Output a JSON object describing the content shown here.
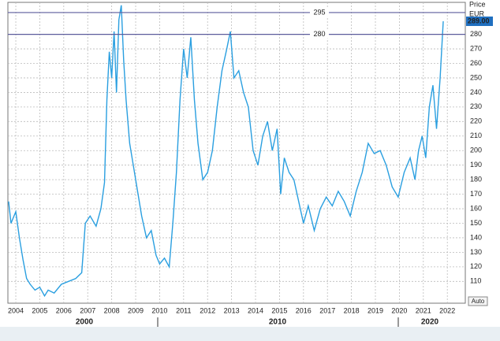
{
  "chart_data": {
    "type": "line",
    "y_axis_title": "Price",
    "unit": "EUR",
    "x": [
      2003.7,
      2003.8,
      2004.0,
      2004.15,
      2004.3,
      2004.45,
      2004.6,
      2004.8,
      2005.0,
      2005.2,
      2005.35,
      2005.6,
      2005.9,
      2006.2,
      2006.5,
      2006.75,
      2006.9,
      2007.1,
      2007.35,
      2007.55,
      2007.7,
      2007.8,
      2007.9,
      2008.0,
      2008.1,
      2008.2,
      2008.3,
      2008.4,
      2008.5,
      2008.6,
      2008.75,
      2008.9,
      2009.05,
      2009.25,
      2009.45,
      2009.65,
      2009.85,
      2010.0,
      2010.2,
      2010.4,
      2010.55,
      2010.7,
      2010.85,
      2011.0,
      2011.15,
      2011.3,
      2011.45,
      2011.6,
      2011.8,
      2012.0,
      2012.2,
      2012.4,
      2012.6,
      2012.8,
      2012.95,
      2013.1,
      2013.3,
      2013.5,
      2013.7,
      2013.9,
      2014.1,
      2014.3,
      2014.5,
      2014.7,
      2014.9,
      2015.05,
      2015.2,
      2015.4,
      2015.6,
      2015.8,
      2016.0,
      2016.2,
      2016.45,
      2016.7,
      2016.95,
      2017.2,
      2017.45,
      2017.7,
      2017.95,
      2018.2,
      2018.45,
      2018.7,
      2018.95,
      2019.2,
      2019.45,
      2019.7,
      2019.95,
      2020.2,
      2020.45,
      2020.65,
      2020.8,
      2020.95,
      2021.1,
      2021.25,
      2021.4,
      2021.55,
      2021.7,
      2021.83
    ],
    "series": [
      {
        "name": "Price",
        "color": "#2a9fe0",
        "values": [
          165,
          150,
          158,
          140,
          125,
          112,
          108,
          104,
          106,
          100,
          104,
          102,
          108,
          110,
          112,
          116,
          150,
          155,
          148,
          160,
          178,
          235,
          268,
          250,
          282,
          240,
          290,
          300,
          262,
          235,
          205,
          190,
          175,
          155,
          140,
          145,
          128,
          122,
          126,
          120,
          150,
          185,
          235,
          270,
          250,
          278,
          235,
          205,
          180,
          185,
          200,
          230,
          255,
          270,
          282,
          250,
          255,
          240,
          230,
          200,
          190,
          210,
          220,
          200,
          215,
          170,
          195,
          185,
          180,
          165,
          150,
          162,
          145,
          160,
          168,
          162,
          172,
          165,
          155,
          172,
          185,
          205,
          198,
          200,
          190,
          175,
          168,
          185,
          195,
          180,
          200,
          210,
          195,
          230,
          245,
          215,
          250,
          289
        ]
      }
    ],
    "xlim": [
      2003.67,
      2022.75
    ],
    "ylim": [
      95,
      302
    ],
    "yticks": [
      110,
      120,
      130,
      140,
      150,
      160,
      170,
      180,
      190,
      200,
      210,
      220,
      230,
      240,
      250,
      260,
      270,
      280
    ],
    "xticks": [
      2004,
      2005,
      2006,
      2007,
      2008,
      2009,
      2010,
      2011,
      2012,
      2013,
      2014,
      2015,
      2016,
      2017,
      2018,
      2019,
      2020,
      2021,
      2022
    ],
    "decade_labels": [
      "2000",
      "2010",
      "2020"
    ],
    "reference_lines": [
      {
        "value": 295,
        "label": "295"
      },
      {
        "value": 280,
        "label": "280"
      }
    ],
    "last_value": {
      "value": 289,
      "label": "289.00"
    },
    "button": "Auto",
    "grid": true
  }
}
